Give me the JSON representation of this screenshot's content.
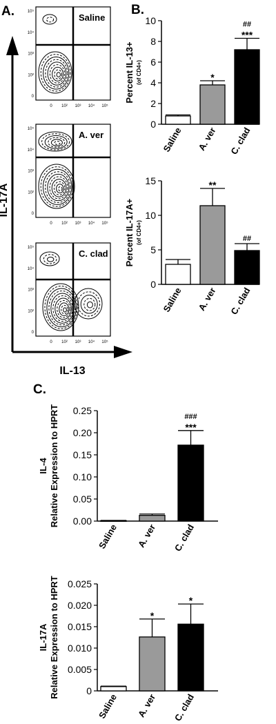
{
  "panels": {
    "a_label": "A.",
    "b_label": "B.",
    "c_label": "C."
  },
  "flow": {
    "y_axis_label": "IL-17A",
    "x_axis_label": "IL-13",
    "plots": [
      {
        "label": "Saline"
      },
      {
        "label": "A. ver"
      },
      {
        "label": "C. clad"
      }
    ],
    "tick_labels_y": [
      "10⁵",
      "10⁴",
      "10³",
      "10²",
      "0"
    ],
    "tick_labels_x": [
      "0",
      "10²",
      "10³",
      "10⁴",
      "10⁵"
    ]
  },
  "chart_data": [
    {
      "type": "bar",
      "categories": [
        "Saline",
        "A. ver",
        "C. clad"
      ],
      "values": [
        0.8,
        3.8,
        7.2
      ],
      "errors": [
        0.1,
        0.4,
        1.1
      ],
      "ylabel": "Percent IL-13+",
      "ylabel_sub": "(of CD4+)",
      "ylim": [
        0,
        10
      ],
      "yticks": [
        "0",
        "2",
        "4",
        "6",
        "8",
        "10"
      ],
      "annotations": [
        [],
        [
          "*"
        ],
        [
          "##",
          "***"
        ]
      ],
      "colors": [
        "#ffffff",
        "#9a9a9a",
        "#000000"
      ]
    },
    {
      "type": "bar",
      "categories": [
        "Saline",
        "A. ver",
        "C. clad"
      ],
      "values": [
        2.9,
        11.4,
        4.9
      ],
      "errors": [
        0.7,
        2.5,
        1.0
      ],
      "ylabel": "Percent IL-17A+",
      "ylabel_sub": "(of CD4+)",
      "ylim": [
        0,
        15
      ],
      "yticks": [
        "0",
        "5",
        "10",
        "15"
      ],
      "annotations": [
        [],
        [
          "**"
        ],
        [
          "##"
        ]
      ],
      "colors": [
        "#ffffff",
        "#9a9a9a",
        "#000000"
      ]
    },
    {
      "type": "bar",
      "categories": [
        "Saline",
        "A. ver",
        "C. clad"
      ],
      "values": [
        0.001,
        0.013,
        0.172
      ],
      "errors": [
        0.0005,
        0.003,
        0.033
      ],
      "ylabel": "Relative Expression to HPRT",
      "ylabel_top": "IL-4",
      "ylim": [
        0,
        0.25
      ],
      "yticks": [
        "0.00",
        "0.05",
        "0.10",
        "0.15",
        "0.20",
        "0.25"
      ],
      "annotations": [
        [],
        [],
        [
          "###",
          "***"
        ]
      ],
      "colors": [
        "#ffffff",
        "#9a9a9a",
        "#000000"
      ]
    },
    {
      "type": "bar",
      "categories": [
        "Saline",
        "A. ver",
        "C. clad"
      ],
      "values": [
        0.001,
        0.0126,
        0.0156
      ],
      "errors": [
        0.0001,
        0.0042,
        0.0047
      ],
      "ylabel": "Relative Expression to HPRT",
      "ylabel_top": "IL-17A",
      "ylim": [
        0,
        0.025
      ],
      "yticks": [
        "0",
        "0.005",
        "0.010",
        "0.015",
        "0.020",
        "0.025"
      ],
      "annotations": [
        [],
        [
          "*"
        ],
        [
          "*"
        ]
      ],
      "colors": [
        "#ffffff",
        "#9a9a9a",
        "#000000"
      ]
    }
  ]
}
